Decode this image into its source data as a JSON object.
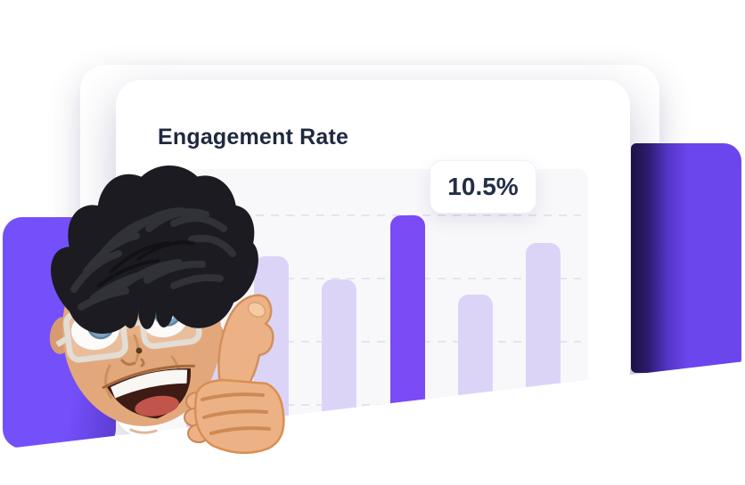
{
  "card": {
    "title": "Engagement Rate",
    "tooltip_value": "10.5%"
  },
  "chart_data": {
    "type": "bar",
    "title": "Engagement Rate",
    "categories": [
      "",
      "",
      "",
      "",
      "",
      ""
    ],
    "values": [
      7.0,
      8.7,
      7.7,
      10.5,
      7.0,
      9.3
    ],
    "unit": "%",
    "xlabel": "",
    "ylabel": "",
    "ylim": [
      0,
      12
    ],
    "highlighted_index": 3,
    "data_label": "10.5%",
    "grid": "horizontal-dashed",
    "legend": "none",
    "axis_labels_visible": false,
    "bar_color": "#DCD4F7",
    "highlight_color": "#7B4BF5"
  },
  "colors": {
    "accent_purple": "#7B4BF5",
    "bar_light": "#DCD4F7",
    "left_shape": "#7450FB",
    "right_shape": "#6B46ED",
    "right_shape_dark_edge": "#1A1042",
    "title_text": "#1F2840",
    "chart_bg": "#F8F8FB",
    "card_bg": "#FFFFFF"
  },
  "avatar": {
    "alt": "Smiling man memoji with dark twisted hair and glasses giving a thumbs up"
  }
}
